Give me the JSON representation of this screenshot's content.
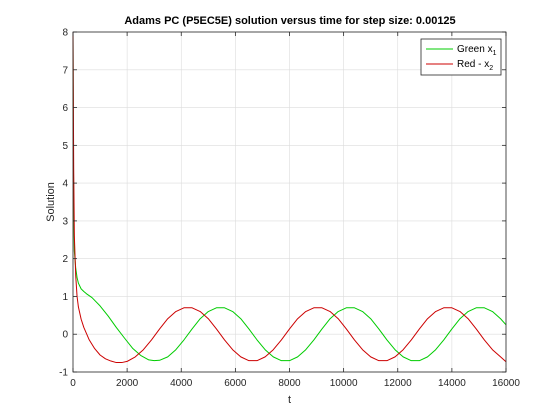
{
  "chart_data": {
    "type": "line",
    "title": "Adams PC (P5EC5E) solution versus time for step size: 0.00125",
    "xlabel": "t",
    "ylabel": "Solution",
    "xlim": [
      0,
      16000
    ],
    "ylim": [
      -1,
      8
    ],
    "xticks": [
      0,
      2000,
      4000,
      6000,
      8000,
      10000,
      12000,
      14000,
      16000
    ],
    "yticks": [
      -1,
      0,
      1,
      2,
      3,
      4,
      5,
      6,
      7,
      8
    ],
    "grid": true,
    "box": true,
    "legend": {
      "position": "top-right"
    },
    "series": [
      {
        "name": "Green x",
        "subscript": "1",
        "color": "#00cc00",
        "x": [
          0,
          10,
          25,
          50,
          100,
          150,
          200,
          300,
          400,
          500,
          700,
          1000,
          1300,
          1600,
          1900,
          2200,
          2500,
          2800,
          3000,
          3200,
          3500,
          3800,
          4100,
          4400,
          4700,
          5000,
          5300,
          5600,
          5900,
          6200,
          6500,
          6800,
          7100,
          7400,
          7700,
          8000,
          8300,
          8600,
          8900,
          9200,
          9500,
          9800,
          10100,
          10400,
          10700,
          11000,
          11300,
          11600,
          11900,
          12200,
          12500,
          12800,
          13100,
          13400,
          13700,
          14000,
          14300,
          14600,
          14900,
          15200,
          15500,
          15800,
          16000
        ],
        "y": [
          8,
          5.5,
          3.3,
          2.2,
          1.75,
          1.5,
          1.35,
          1.2,
          1.13,
          1.07,
          0.97,
          0.75,
          0.48,
          0.18,
          -0.1,
          -0.37,
          -0.56,
          -0.68,
          -0.7,
          -0.69,
          -0.6,
          -0.41,
          -0.15,
          0.14,
          0.41,
          0.6,
          0.7,
          0.7,
          0.6,
          0.41,
          0.14,
          -0.15,
          -0.41,
          -0.6,
          -0.7,
          -0.7,
          -0.6,
          -0.41,
          -0.15,
          0.14,
          0.41,
          0.6,
          0.7,
          0.7,
          0.6,
          0.41,
          0.14,
          -0.15,
          -0.41,
          -0.6,
          -0.7,
          -0.7,
          -0.6,
          -0.41,
          -0.15,
          0.14,
          0.41,
          0.6,
          0.7,
          0.7,
          0.6,
          0.41,
          0.25
        ]
      },
      {
        "name": "Red - x",
        "subscript": "2",
        "color": "#cc0000",
        "x": [
          0,
          10,
          25,
          50,
          100,
          150,
          200,
          300,
          400,
          600,
          800,
          1000,
          1200,
          1400,
          1600,
          1800,
          2000,
          2300,
          2600,
          2900,
          3200,
          3500,
          3800,
          4100,
          4400,
          4700,
          5000,
          5300,
          5600,
          5900,
          6200,
          6500,
          6800,
          7100,
          7400,
          7700,
          8000,
          8300,
          8600,
          8900,
          9200,
          9500,
          9800,
          10100,
          10400,
          10700,
          11000,
          11300,
          11600,
          11900,
          12200,
          12500,
          12800,
          13100,
          13400,
          13700,
          14000,
          14300,
          14600,
          14900,
          15200,
          15500,
          15800,
          16000
        ],
        "y": [
          8,
          6.6,
          4.4,
          2.6,
          1.55,
          1.0,
          0.72,
          0.4,
          0.18,
          -0.15,
          -0.38,
          -0.55,
          -0.65,
          -0.71,
          -0.75,
          -0.75,
          -0.72,
          -0.6,
          -0.41,
          -0.15,
          0.14,
          0.41,
          0.6,
          0.7,
          0.7,
          0.6,
          0.41,
          0.14,
          -0.15,
          -0.41,
          -0.6,
          -0.7,
          -0.7,
          -0.6,
          -0.41,
          -0.15,
          0.14,
          0.41,
          0.6,
          0.7,
          0.7,
          0.6,
          0.41,
          0.14,
          -0.15,
          -0.41,
          -0.6,
          -0.7,
          -0.7,
          -0.6,
          -0.41,
          -0.15,
          0.14,
          0.41,
          0.6,
          0.7,
          0.7,
          0.6,
          0.41,
          0.14,
          -0.15,
          -0.41,
          -0.6,
          -0.73
        ]
      }
    ]
  }
}
